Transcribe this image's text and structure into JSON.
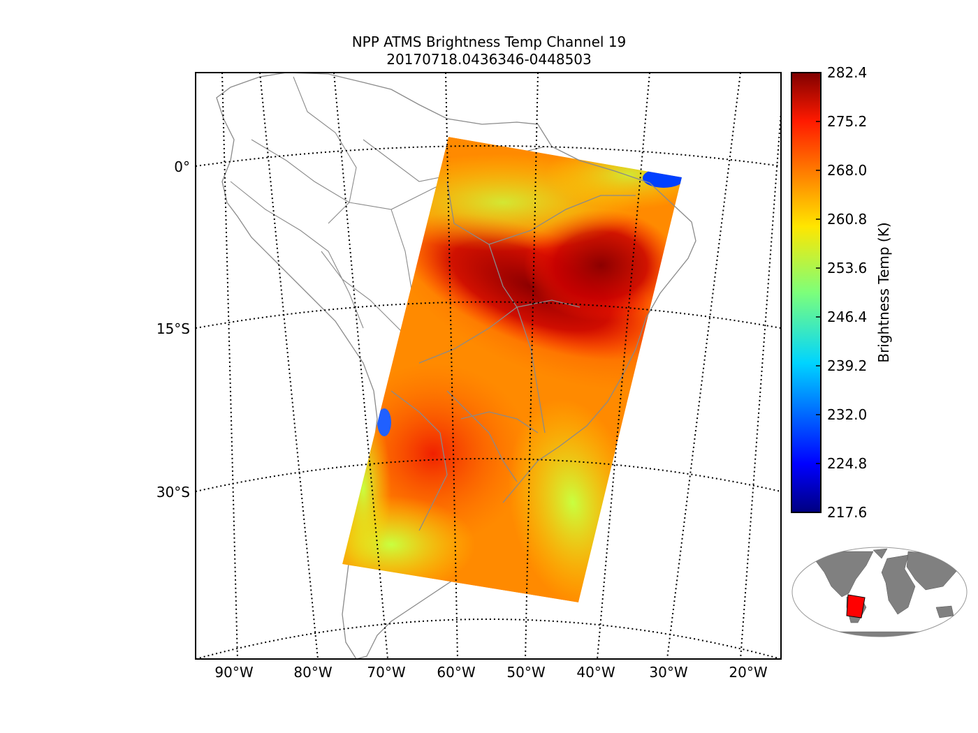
{
  "title": "NPP ATMS Brightness Temp Channel 19",
  "subtitle": "20170718.0436346-0448503",
  "map": {
    "lat_labels": [
      "0°",
      "15°S",
      "30°S"
    ],
    "lon_labels": [
      "90°W",
      "80°W",
      "70°W",
      "60°W",
      "50°W",
      "40°W",
      "30°W",
      "20°W"
    ]
  },
  "colorbar": {
    "label": "Brightness Temp (K)",
    "ticks": [
      "282.4",
      "275.2",
      "268.0",
      "260.8",
      "253.6",
      "246.4",
      "239.2",
      "232.0",
      "224.8",
      "217.6"
    ],
    "min": 217.6,
    "max": 282.4,
    "colormap": "jet"
  },
  "colors": {
    "land_outline": "#8a8a8a",
    "swath_low": "#c8ff30",
    "swath_mid": "#ff8800",
    "swath_high": "#8c0000",
    "inset_land": "#808080",
    "inset_swath": "#ff0000"
  }
}
